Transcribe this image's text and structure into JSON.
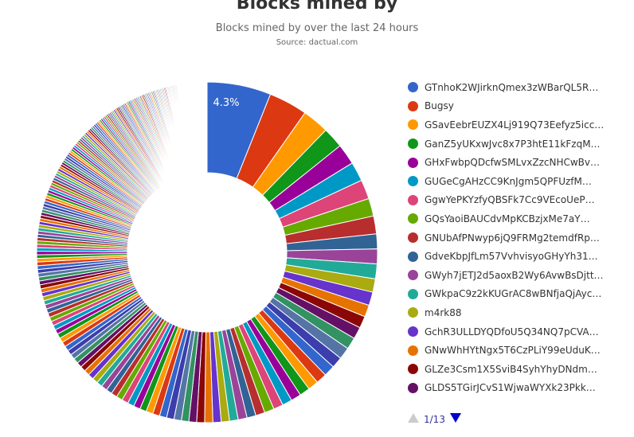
{
  "title": "Blocks mined by",
  "subtitle": "Blocks mined by over the last 24 hours",
  "source": "Source: dactual.com",
  "colors": {
    "palette": [
      "#3366cc",
      "#dc3912",
      "#ff9900",
      "#109618",
      "#990099",
      "#0099c6",
      "#dd4477",
      "#66aa00",
      "#b82e2e",
      "#316395",
      "#994499",
      "#22aa99",
      "#aaaa11",
      "#6633cc",
      "#e67300",
      "#8b0707",
      "#651067",
      "#329262",
      "#5574a6",
      "#3b3eac"
    ],
    "pager_active": "#0000cc",
    "pager_inactive": "#cccccc"
  },
  "legend": {
    "items": [
      {
        "label": "GTnhoK2WJirknQmex3zWBarQL5R…",
        "color": "#3366cc"
      },
      {
        "label": "Bugsy",
        "color": "#dc3912"
      },
      {
        "label": "GSavEebrEUZX4Lj919Q73Eefyz5icc…",
        "color": "#ff9900"
      },
      {
        "label": "GanZ5yUKxwJvc8x7P3htE11kFzqM…",
        "color": "#109618"
      },
      {
        "label": "GHxFwbpQDcfwSMLvxZzcNHCwBv…",
        "color": "#990099"
      },
      {
        "label": "GUGeCgAHzCC9KnJgm5QPFUzfM…",
        "color": "#0099c6"
      },
      {
        "label": "GgwYePKYzfyQBSFk7Cc9VEcoUeP…",
        "color": "#dd4477"
      },
      {
        "label": "GQsYaoiBAUCdvMpKCBzjxMe7aY…",
        "color": "#66aa00"
      },
      {
        "label": "GNUbAfPNwyp6jQ9FRMg2temdfRp…",
        "color": "#b82e2e"
      },
      {
        "label": "GdveKbpJfLm57VvhvisyoGHyYh31…",
        "color": "#316395"
      },
      {
        "label": "GWyh7jETJ2d5aoxB2Wy6AvwBsDjtt…",
        "color": "#994499"
      },
      {
        "label": "GWkpaC9z2kKUGrAC8wBNfjaQjAyc…",
        "color": "#22aa99"
      },
      {
        "label": "m4rk88",
        "color": "#aaaa11"
      },
      {
        "label": "GchR3ULLDYQDfoU5Q34NQ7pCVA…",
        "color": "#6633cc"
      },
      {
        "label": "GNwWhHYtNgx5T6CzPLiY99eUduK…",
        "color": "#e67300"
      },
      {
        "label": "GLZe3Csm1X5SviB4SyhYhyDNdm…",
        "color": "#8b0707"
      },
      {
        "label": "GLDS5TGirJCvS1WjwaWYXk23Pkk…",
        "color": "#651067"
      }
    ],
    "page_text": "1/13"
  },
  "chart_data": {
    "type": "pie",
    "donut": true,
    "title": "Blocks mined by",
    "subtitle": "Blocks mined by over the last 24 hours",
    "source": "Source: dactual.com",
    "slice_label": "4.3%",
    "named_slices": [
      {
        "name": "GTnhoK2WJirknQmex3zWBarQL5R…",
        "percent": 4.3
      },
      {
        "name": "Bugsy",
        "percent": 2.6
      },
      {
        "name": "GSavEebrEUZX4Lj919Q73Eefyz5icc…",
        "percent": 1.8
      },
      {
        "name": "GanZ5yUKxwJvc8x7P3htE11kFzqM…",
        "percent": 1.4
      },
      {
        "name": "GHxFwbpQDcfwSMLvxZzcNHCwBv…",
        "percent": 1.4
      },
      {
        "name": "GUGeCgAHzCC9KnJgm5QPFUzfM…",
        "percent": 1.3
      },
      {
        "name": "GgwYePKYzfyQBSFk7Cc9VEcoUeP…",
        "percent": 1.3
      },
      {
        "name": "GQsYaoiBAUCdvMpKCBzjxMe7aY…",
        "percent": 1.2
      },
      {
        "name": "GNUbAfPNwyp6jQ9FRMg2temdfRp…",
        "percent": 1.2
      },
      {
        "name": "GdveKbpJfLm57VvhvisyoGHyYh31…",
        "percent": 1.0
      },
      {
        "name": "GWyh7jETJ2d5aoxB2Wy6AvwBsDjtt…",
        "percent": 1.0
      },
      {
        "name": "GWkpaC9z2kKUGrAC8wBNfjaQjAyc…",
        "percent": 1.0
      },
      {
        "name": "m4rk88",
        "percent": 0.9
      },
      {
        "name": "GchR3ULLDYQDfoU5Q34NQ7pCVA…",
        "percent": 0.9
      },
      {
        "name": "GNwWhHYtNgx5T6CzPLiY99eUduK…",
        "percent": 0.8
      },
      {
        "name": "GLZe3Csm1X5SviB4SyhYhyDNdm…",
        "percent": 0.8
      },
      {
        "name": "GLDS5TGirJCvS1WjwaWYXk23Pkk…",
        "percent": 0.8
      }
    ],
    "tail_percents": [
      0.8,
      0.8,
      0.75,
      0.75,
      0.72,
      0.7,
      0.7,
      0.68,
      0.66,
      0.65,
      0.65,
      0.62,
      0.6,
      0.6,
      0.58,
      0.56,
      0.55,
      0.55,
      0.53,
      0.52,
      0.5,
      0.5,
      0.5,
      0.48,
      0.47,
      0.46,
      0.45,
      0.45,
      0.44,
      0.43,
      0.42,
      0.41,
      0.4,
      0.4,
      0.39,
      0.38,
      0.38,
      0.37,
      0.36,
      0.35,
      0.35,
      0.34,
      0.34,
      0.33,
      0.33,
      0.32,
      0.32,
      0.31,
      0.31,
      0.3,
      0.3,
      0.3,
      0.29,
      0.29,
      0.28,
      0.28,
      0.27,
      0.27,
      0.27,
      0.26,
      0.26,
      0.26,
      0.25,
      0.25,
      0.25,
      0.24,
      0.24,
      0.24,
      0.23,
      0.23,
      0.23,
      0.22,
      0.22,
      0.22,
      0.22,
      0.21,
      0.21,
      0.21,
      0.21,
      0.2,
      0.2,
      0.2,
      0.2,
      0.2,
      0.19,
      0.19,
      0.19,
      0.19,
      0.18,
      0.18,
      0.18,
      0.18,
      0.18,
      0.17,
      0.17,
      0.17,
      0.17,
      0.17,
      0.16,
      0.16,
      0.16,
      0.16,
      0.16,
      0.16,
      0.15,
      0.15,
      0.15,
      0.15,
      0.15,
      0.15,
      0.14,
      0.14,
      0.14,
      0.14,
      0.14,
      0.14,
      0.14,
      0.13,
      0.13,
      0.13,
      0.13,
      0.13,
      0.13,
      0.13,
      0.12,
      0.12,
      0.12,
      0.12,
      0.12,
      0.12,
      0.12,
      0.12,
      0.11,
      0.11,
      0.11,
      0.11,
      0.11,
      0.11,
      0.11,
      0.11,
      0.1,
      0.1,
      0.1,
      0.1,
      0.1,
      0.1,
      0.1,
      0.1,
      0.1,
      0.09,
      0.09,
      0.09,
      0.09,
      0.09,
      0.09,
      0.09,
      0.09,
      0.09,
      0.09,
      0.08,
      0.08,
      0.08,
      0.08,
      0.08,
      0.08,
      0.08,
      0.08,
      0.08,
      0.08,
      0.07,
      0.07,
      0.07,
      0.07,
      0.07,
      0.07,
      0.07,
      0.07,
      0.07,
      0.07,
      0.07,
      0.06,
      0.06,
      0.06,
      0.06,
      0.06,
      0.06,
      0.06,
      0.06,
      0.06,
      0.06,
      0.06,
      0.06,
      0.05,
      0.05,
      0.05,
      0.05,
      0.05,
      0.05,
      0.05,
      0.05,
      0.05,
      0.05,
      0.05,
      0.05,
      0.05,
      0.05,
      0.04,
      0.04,
      0.04,
      0.04,
      0.04,
      0.04,
      0.04,
      0.04,
      0.04,
      0.04,
      0.04,
      0.04,
      0.04,
      0.04,
      0.04,
      0.03,
      0.03,
      0.03,
      0.03,
      0.03,
      0.03,
      0.03,
      0.03,
      0.03,
      0.03,
      0.03,
      0.03,
      0.03,
      0.03,
      0.03,
      0.03,
      0.03,
      0.03,
      0.03,
      0.03,
      0.03,
      0.03,
      0.03,
      0.03,
      0.03
    ],
    "legend_placement": "right"
  }
}
